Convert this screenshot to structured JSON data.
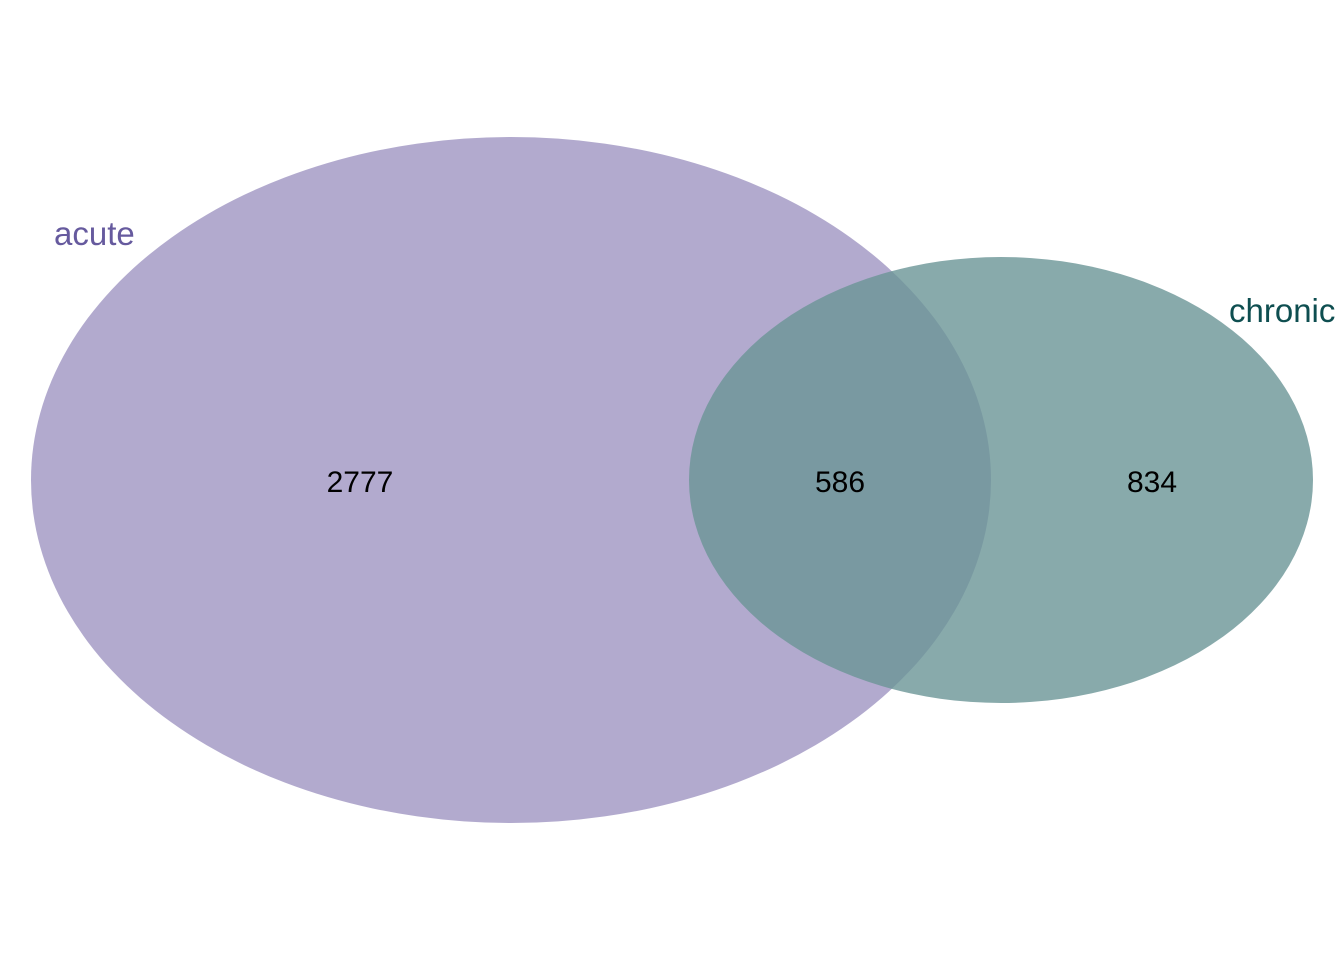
{
  "venn": {
    "sets": [
      {
        "name": "acute",
        "fill": "#9f95c2",
        "label_color": "#665a9e"
      },
      {
        "name": "chronic",
        "fill": "#6a9596",
        "label_color": "#0e4e50"
      }
    ],
    "regions": {
      "acute_only": "2777",
      "overlap": "586",
      "chronic_only": "834"
    },
    "fill_opacity": 0.8
  }
}
